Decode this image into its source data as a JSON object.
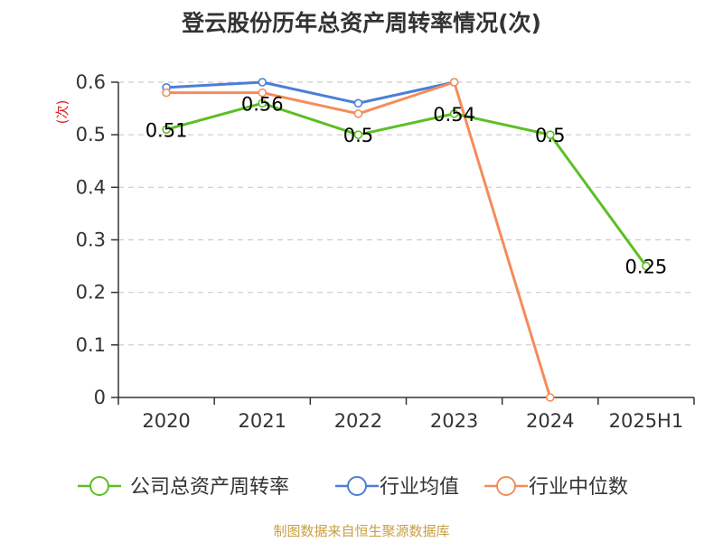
{
  "chart_data": {
    "type": "line",
    "title": "登云股份历年总资产周转率情况(次)",
    "ylabel": "(次)",
    "categories": [
      "2020",
      "2021",
      "2022",
      "2023",
      "2024",
      "2025H1"
    ],
    "ylim": [
      0,
      0.6
    ],
    "yticks": [
      0,
      0.1,
      0.2,
      0.3,
      0.4,
      0.5,
      0.6
    ],
    "ytick_labels": [
      "0",
      "0.1",
      "0.2",
      "0.3",
      "0.4",
      "0.5",
      "0.6"
    ],
    "grid": true,
    "legend_position": "bottom",
    "series": [
      {
        "name": "公司总资产周转率",
        "color": "#5cbf24",
        "values": [
          0.51,
          0.56,
          0.5,
          0.54,
          0.5,
          0.25
        ],
        "labels": [
          "0.51",
          "0.56",
          "0.5",
          "0.54",
          "0.5",
          "0.25"
        ]
      },
      {
        "name": "行业均值",
        "color": "#4a7fd6",
        "values": [
          0.59,
          0.6,
          0.56,
          0.6,
          null,
          null
        ]
      },
      {
        "name": "行业中位数",
        "color": "#f58c5a",
        "values": [
          0.58,
          0.58,
          0.54,
          0.6,
          0,
          null
        ]
      }
    ]
  },
  "source": "制图数据来自恒生聚源数据库"
}
